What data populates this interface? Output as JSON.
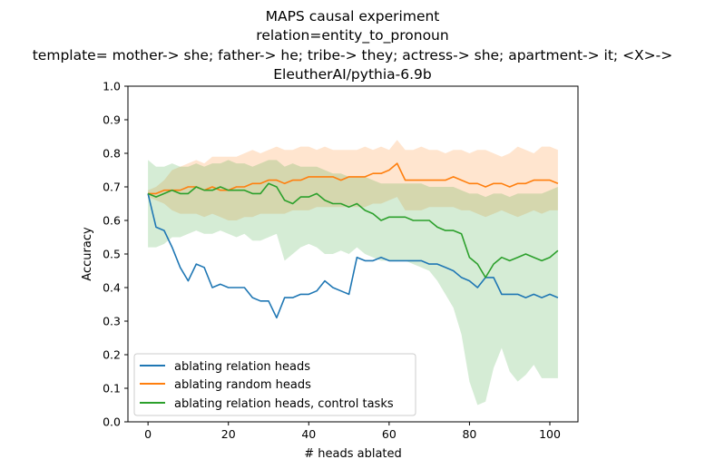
{
  "chart_data": {
    "type": "line",
    "title_lines": [
      "MAPS causal experiment",
      "relation=entity_to_pronoun",
      "template= mother-> she; father-> he; tribe-> they; actress-> she; apartment-> it; <X>->",
      "EleutherAI/pythia-6.9b"
    ],
    "xlabel": "# heads ablated",
    "ylabel": "Accuracy",
    "xlim": [
      -5,
      107
    ],
    "ylim": [
      0.0,
      1.0
    ],
    "xticks": [
      0,
      20,
      40,
      60,
      80,
      100
    ],
    "yticks": [
      0.0,
      0.1,
      0.2,
      0.3,
      0.4,
      0.5,
      0.6,
      0.7,
      0.8,
      0.9,
      1.0
    ],
    "legend_position": "lower-left",
    "series": [
      {
        "name": "ablating relation heads",
        "color": "#1f77b4",
        "x": [
          0,
          2,
          4,
          6,
          8,
          10,
          12,
          14,
          16,
          18,
          20,
          22,
          24,
          26,
          28,
          30,
          32,
          34,
          36,
          38,
          40,
          42,
          44,
          46,
          48,
          50,
          52,
          54,
          56,
          58,
          60,
          62,
          64,
          66,
          68,
          70,
          72,
          74,
          76,
          78,
          80,
          82,
          84,
          86,
          88,
          90,
          92,
          94,
          96,
          98,
          100,
          102
        ],
        "values": [
          0.68,
          0.58,
          0.57,
          0.52,
          0.46,
          0.42,
          0.47,
          0.46,
          0.4,
          0.41,
          0.4,
          0.4,
          0.4,
          0.37,
          0.36,
          0.36,
          0.31,
          0.37,
          0.37,
          0.38,
          0.38,
          0.39,
          0.42,
          0.4,
          0.39,
          0.38,
          0.49,
          0.48,
          0.48,
          0.49,
          0.48,
          0.48,
          0.48,
          0.48,
          0.48,
          0.47,
          0.47,
          0.46,
          0.45,
          0.43,
          0.42,
          0.4,
          0.43,
          0.43,
          0.38,
          0.38,
          0.38,
          0.37,
          0.38,
          0.37,
          0.38,
          0.37
        ]
      },
      {
        "name": "ablating random heads",
        "color": "#ff7f0e",
        "x": [
          0,
          2,
          4,
          6,
          8,
          10,
          12,
          14,
          16,
          18,
          20,
          22,
          24,
          26,
          28,
          30,
          32,
          34,
          36,
          38,
          40,
          42,
          44,
          46,
          48,
          50,
          52,
          54,
          56,
          58,
          60,
          62,
          64,
          66,
          68,
          70,
          72,
          74,
          76,
          78,
          80,
          82,
          84,
          86,
          88,
          90,
          92,
          94,
          96,
          98,
          100,
          102
        ],
        "values": [
          0.68,
          0.68,
          0.69,
          0.69,
          0.69,
          0.7,
          0.7,
          0.69,
          0.7,
          0.69,
          0.69,
          0.7,
          0.7,
          0.71,
          0.71,
          0.72,
          0.72,
          0.71,
          0.72,
          0.72,
          0.73,
          0.73,
          0.73,
          0.73,
          0.72,
          0.73,
          0.73,
          0.73,
          0.74,
          0.74,
          0.75,
          0.77,
          0.72,
          0.72,
          0.72,
          0.72,
          0.72,
          0.72,
          0.73,
          0.72,
          0.71,
          0.71,
          0.7,
          0.71,
          0.71,
          0.7,
          0.71,
          0.71,
          0.72,
          0.72,
          0.72,
          0.71
        ],
        "band_upper": [
          0.69,
          0.7,
          0.72,
          0.75,
          0.76,
          0.77,
          0.78,
          0.77,
          0.79,
          0.79,
          0.79,
          0.79,
          0.8,
          0.81,
          0.8,
          0.81,
          0.82,
          0.81,
          0.81,
          0.82,
          0.82,
          0.81,
          0.82,
          0.81,
          0.81,
          0.81,
          0.81,
          0.82,
          0.81,
          0.82,
          0.81,
          0.84,
          0.81,
          0.81,
          0.82,
          0.81,
          0.81,
          0.8,
          0.81,
          0.81,
          0.8,
          0.81,
          0.81,
          0.8,
          0.79,
          0.8,
          0.82,
          0.81,
          0.8,
          0.82,
          0.82,
          0.81
        ],
        "band_lower": [
          0.67,
          0.66,
          0.65,
          0.63,
          0.62,
          0.62,
          0.62,
          0.61,
          0.62,
          0.61,
          0.6,
          0.6,
          0.61,
          0.61,
          0.62,
          0.62,
          0.62,
          0.62,
          0.63,
          0.63,
          0.63,
          0.64,
          0.64,
          0.64,
          0.64,
          0.64,
          0.64,
          0.64,
          0.65,
          0.65,
          0.66,
          0.67,
          0.63,
          0.63,
          0.63,
          0.64,
          0.64,
          0.64,
          0.64,
          0.63,
          0.63,
          0.62,
          0.61,
          0.62,
          0.63,
          0.62,
          0.61,
          0.62,
          0.63,
          0.62,
          0.63,
          0.63
        ]
      },
      {
        "name": "ablating relation heads, control tasks",
        "color": "#2ca02c",
        "x": [
          0,
          2,
          4,
          6,
          8,
          10,
          12,
          14,
          16,
          18,
          20,
          22,
          24,
          26,
          28,
          30,
          32,
          34,
          36,
          38,
          40,
          42,
          44,
          46,
          48,
          50,
          52,
          54,
          56,
          58,
          60,
          62,
          64,
          66,
          68,
          70,
          72,
          74,
          76,
          78,
          80,
          82,
          84,
          86,
          88,
          90,
          92,
          94,
          96,
          98,
          100,
          102
        ],
        "values": [
          0.68,
          0.67,
          0.68,
          0.69,
          0.68,
          0.68,
          0.7,
          0.69,
          0.69,
          0.7,
          0.69,
          0.69,
          0.69,
          0.68,
          0.68,
          0.71,
          0.7,
          0.66,
          0.65,
          0.67,
          0.67,
          0.68,
          0.66,
          0.65,
          0.65,
          0.64,
          0.65,
          0.63,
          0.62,
          0.6,
          0.61,
          0.61,
          0.61,
          0.6,
          0.6,
          0.6,
          0.58,
          0.57,
          0.57,
          0.56,
          0.49,
          0.47,
          0.43,
          0.47,
          0.49,
          0.48,
          0.49,
          0.5,
          0.49,
          0.48,
          0.49,
          0.51
        ],
        "band_upper": [
          0.78,
          0.76,
          0.76,
          0.77,
          0.76,
          0.76,
          0.77,
          0.76,
          0.77,
          0.77,
          0.78,
          0.77,
          0.77,
          0.76,
          0.77,
          0.78,
          0.78,
          0.76,
          0.77,
          0.76,
          0.76,
          0.76,
          0.75,
          0.74,
          0.74,
          0.73,
          0.73,
          0.73,
          0.72,
          0.71,
          0.71,
          0.71,
          0.71,
          0.71,
          0.71,
          0.7,
          0.7,
          0.7,
          0.7,
          0.69,
          0.68,
          0.68,
          0.67,
          0.68,
          0.68,
          0.67,
          0.68,
          0.68,
          0.68,
          0.68,
          0.69,
          0.7
        ],
        "band_lower": [
          0.52,
          0.52,
          0.53,
          0.55,
          0.55,
          0.56,
          0.57,
          0.56,
          0.56,
          0.57,
          0.56,
          0.55,
          0.56,
          0.54,
          0.54,
          0.55,
          0.56,
          0.48,
          0.5,
          0.52,
          0.53,
          0.52,
          0.5,
          0.5,
          0.51,
          0.5,
          0.52,
          0.5,
          0.49,
          0.48,
          0.48,
          0.48,
          0.48,
          0.47,
          0.46,
          0.45,
          0.42,
          0.38,
          0.34,
          0.26,
          0.12,
          0.05,
          0.06,
          0.16,
          0.22,
          0.15,
          0.12,
          0.14,
          0.17,
          0.13,
          0.13,
          0.13
        ]
      }
    ]
  }
}
